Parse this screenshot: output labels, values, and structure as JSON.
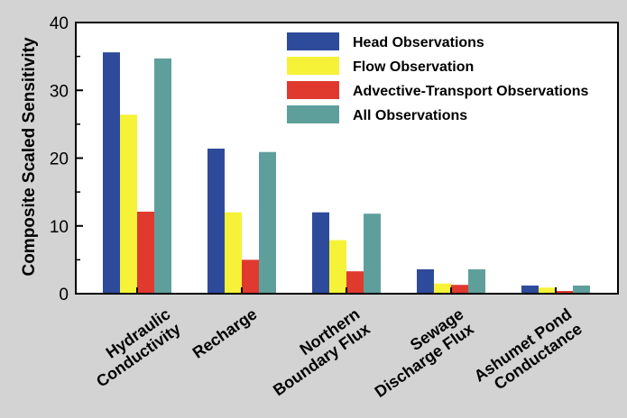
{
  "chart_data": {
    "type": "bar",
    "title": "",
    "xlabel": "",
    "ylabel": "Composite Scaled Sensitivity",
    "ylim": [
      0,
      40
    ],
    "yticks": [
      0,
      10,
      20,
      30,
      40
    ],
    "grid": false,
    "legend_position": "top-right",
    "categories": [
      [
        "Hydraulic",
        "Conductivity"
      ],
      [
        "Recharge"
      ],
      [
        "Northern",
        "Boundary Flux"
      ],
      [
        "Sewage",
        "Discharge Flux"
      ],
      [
        "Ashumet Pond",
        "Conductance"
      ]
    ],
    "series": [
      {
        "name": "Head Observations",
        "color": "#2e4b9b",
        "values": [
          35.6,
          21.4,
          12.0,
          3.6,
          1.2
        ]
      },
      {
        "name": "Flow Observation",
        "color": "#f5f238",
        "values": [
          26.4,
          12.0,
          7.9,
          1.5,
          0.9
        ]
      },
      {
        "name": "Advective-Transport Observations",
        "color": "#e03a2f",
        "values": [
          12.1,
          5.0,
          3.3,
          1.3,
          0.4
        ]
      },
      {
        "name": "All Observations",
        "color": "#5f9f9b",
        "values": [
          34.7,
          20.9,
          11.8,
          3.6,
          1.2
        ]
      }
    ]
  }
}
